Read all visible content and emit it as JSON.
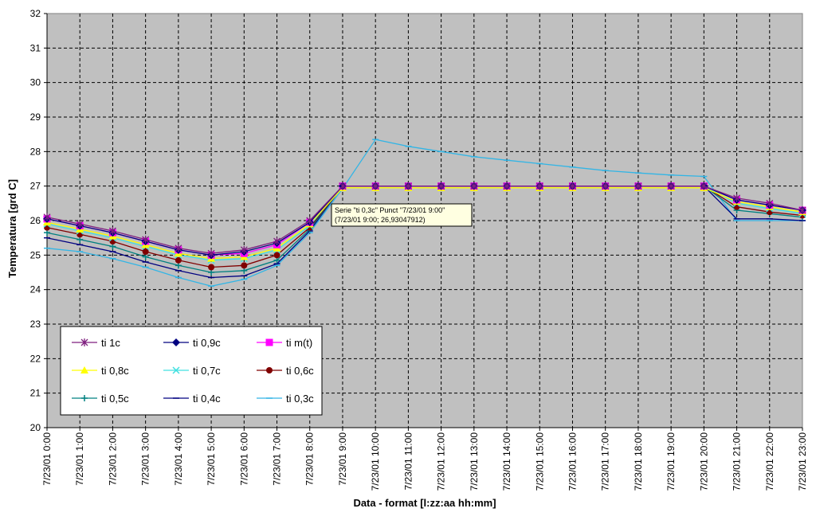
{
  "chart_data": {
    "type": "line",
    "ylabel": "Temperatura [grd C]",
    "xlabel": "Data - format [l:zz:aa hh:mm]",
    "ylim": [
      20,
      32
    ],
    "yticks": [
      20,
      21,
      22,
      23,
      24,
      25,
      26,
      27,
      28,
      29,
      30,
      31,
      32
    ],
    "grid": true,
    "legend_position": "bottom-left",
    "categories": [
      "7/23/01 0:00",
      "7/23/01 1:00",
      "7/23/01 2:00",
      "7/23/01 3:00",
      "7/23/01 4:00",
      "7/23/01 5:00",
      "7/23/01 6:00",
      "7/23/01 7:00",
      "7/23/01 8:00",
      "7/23/01 9:00",
      "7/23/01 10:00",
      "7/23/01 11:00",
      "7/23/01 12:00",
      "7/23/01 13:00",
      "7/23/01 14:00",
      "7/23/01 15:00",
      "7/23/01 16:00",
      "7/23/01 17:00",
      "7/23/01 18:00",
      "7/23/01 19:00",
      "7/23/01 20:00",
      "7/23/01 21:00",
      "7/23/01 22:00",
      "7/23/01 23:00"
    ],
    "series": [
      {
        "name": "ti 1c",
        "color": "#7f1f7f",
        "marker": "star",
        "values": [
          26.1,
          25.9,
          25.7,
          25.45,
          25.2,
          25.05,
          25.15,
          25.4,
          26.0,
          27.0,
          27.0,
          27.0,
          27.0,
          27.0,
          27.0,
          27.0,
          27.0,
          27.0,
          27.0,
          27.0,
          27.0,
          26.65,
          26.5,
          26.3
        ]
      },
      {
        "name": "ti 0,9c",
        "color": "#000080",
        "marker": "diamond",
        "values": [
          26.05,
          25.85,
          25.65,
          25.4,
          25.15,
          25.0,
          25.1,
          25.35,
          25.95,
          27.0,
          27.0,
          27.0,
          27.0,
          27.0,
          27.0,
          27.0,
          27.0,
          27.0,
          27.0,
          27.0,
          27.0,
          26.6,
          26.45,
          26.3
        ]
      },
      {
        "name": "ti m(t)",
        "color": "#ff00ff",
        "marker": "square",
        "values": [
          26.05,
          25.85,
          25.65,
          25.4,
          25.15,
          25.0,
          25.05,
          25.3,
          25.95,
          27.0,
          27.0,
          27.0,
          27.0,
          27.0,
          27.0,
          27.0,
          27.0,
          27.0,
          27.0,
          27.0,
          27.0,
          26.6,
          26.45,
          26.3
        ]
      },
      {
        "name": "ti 0,8c",
        "color": "#ffff00",
        "marker": "triangle",
        "values": [
          25.95,
          25.75,
          25.55,
          25.3,
          25.05,
          24.9,
          24.95,
          25.2,
          25.9,
          26.95,
          26.95,
          26.95,
          26.95,
          26.95,
          26.95,
          26.95,
          26.95,
          26.95,
          26.95,
          26.95,
          26.95,
          26.55,
          26.4,
          26.25
        ]
      },
      {
        "name": "ti 0,7c",
        "color": "#40e0e0",
        "marker": "x",
        "values": [
          25.9,
          25.7,
          25.5,
          25.25,
          25.0,
          24.85,
          24.9,
          25.15,
          25.85,
          27.0,
          27.0,
          27.0,
          27.0,
          27.0,
          27.0,
          27.0,
          27.0,
          27.0,
          27.0,
          27.0,
          27.0,
          26.5,
          26.35,
          26.2
        ]
      },
      {
        "name": "ti 0,6c",
        "color": "#800000",
        "marker": "circle",
        "values": [
          25.8,
          25.6,
          25.4,
          25.1,
          24.85,
          24.65,
          24.7,
          25.0,
          25.8,
          27.0,
          27.0,
          27.0,
          27.0,
          27.0,
          27.0,
          27.0,
          27.0,
          27.0,
          27.0,
          27.0,
          27.0,
          26.4,
          26.25,
          26.15
        ]
      },
      {
        "name": "ti 0,5c",
        "color": "#008080",
        "marker": "plus",
        "values": [
          25.65,
          25.45,
          25.25,
          24.95,
          24.7,
          24.5,
          24.55,
          24.85,
          25.75,
          27.0,
          27.0,
          27.0,
          27.0,
          27.0,
          27.0,
          27.0,
          27.0,
          27.0,
          27.0,
          27.0,
          27.0,
          26.3,
          26.2,
          26.1
        ]
      },
      {
        "name": "ti 0,4c",
        "color": "#000080",
        "marker": "dash",
        "values": [
          25.5,
          25.3,
          25.1,
          24.8,
          24.55,
          24.35,
          24.4,
          24.75,
          25.7,
          27.0,
          27.0,
          27.0,
          27.0,
          27.0,
          27.0,
          27.0,
          27.0,
          27.0,
          27.0,
          27.0,
          27.0,
          26.05,
          26.05,
          26.0
        ]
      },
      {
        "name": "ti 0,3c",
        "color": "#33b5e5",
        "marker": "dash",
        "values": [
          25.2,
          25.1,
          24.9,
          24.65,
          24.35,
          24.1,
          24.3,
          24.7,
          25.65,
          26.93047912,
          28.35,
          28.15,
          28.0,
          27.85,
          27.75,
          27.65,
          27.55,
          27.45,
          27.38,
          27.32,
          27.28,
          26.0,
          26.0,
          26.0
        ]
      }
    ]
  },
  "tooltip": {
    "line1": "Serie \"ti 0,3c\" Punct \"7/23/01 9:00\"",
    "line2": "(7/23/01 9:00; 26,93047912)"
  }
}
